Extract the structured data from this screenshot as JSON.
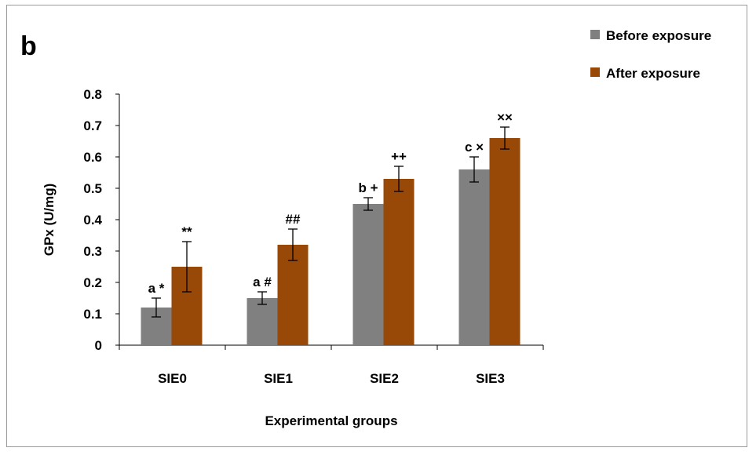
{
  "panel_label": "b",
  "colors": {
    "before": "#808080",
    "after": "#984807",
    "axis": "#000000"
  },
  "chart_data": {
    "type": "bar",
    "title": "",
    "xlabel": "Experimental groups",
    "ylabel": "GPx (U/mg)",
    "ylim": [
      0,
      0.8
    ],
    "yticks": [
      "0",
      "0.1",
      "0.2",
      "0.3",
      "0.4",
      "0.5",
      "0.6",
      "0.7",
      "0.8"
    ],
    "categories": [
      "SIE0",
      "SIE1",
      "SIE2",
      "SIE3"
    ],
    "legend_position": "top-right",
    "error_bars": true,
    "series": [
      {
        "name": "Before exposure",
        "values": [
          0.12,
          0.15,
          0.45,
          0.56
        ],
        "errors": [
          0.03,
          0.02,
          0.02,
          0.04
        ],
        "labels": [
          "a *",
          "a #",
          "b +",
          "c ×"
        ]
      },
      {
        "name": "After exposure",
        "values": [
          0.25,
          0.32,
          0.53,
          0.66
        ],
        "errors": [
          0.08,
          0.05,
          0.04,
          0.035
        ],
        "labels": [
          "**",
          "##",
          "++",
          "××"
        ]
      }
    ]
  }
}
